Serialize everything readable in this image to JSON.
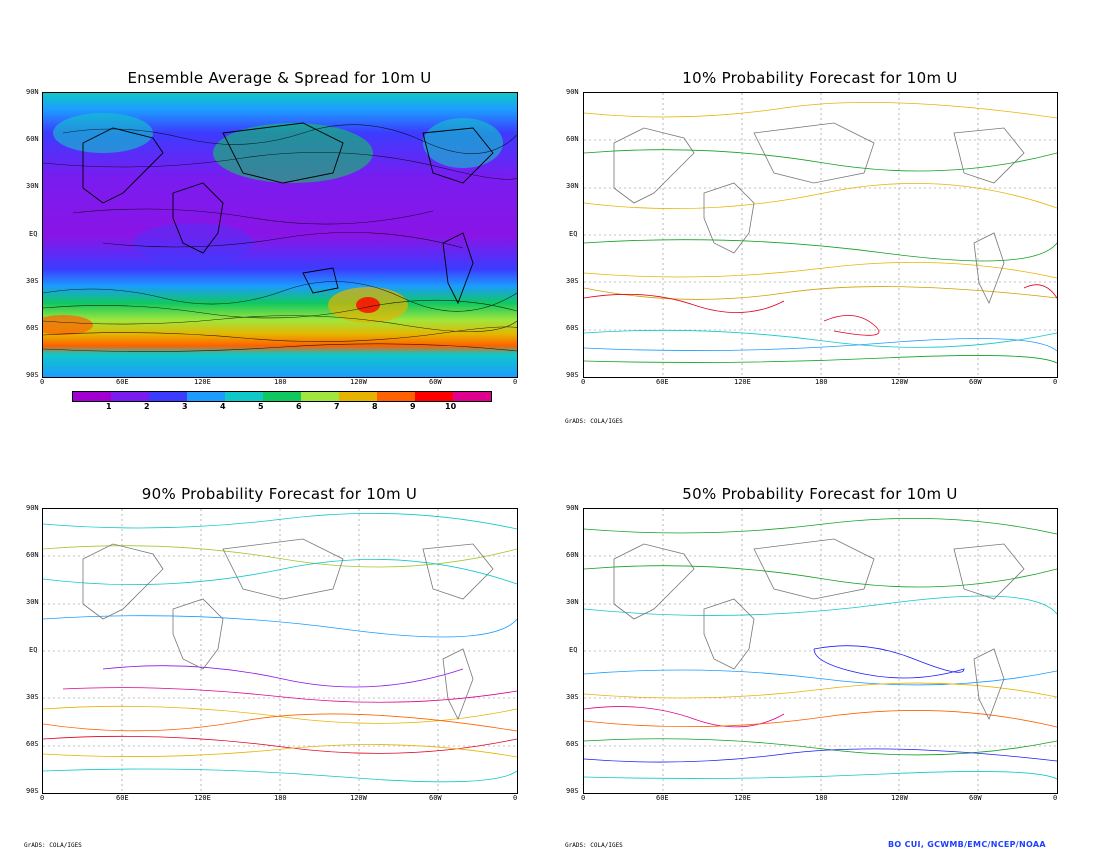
{
  "panels": [
    {
      "id": "avg",
      "title": "Ensemble Average & Spread for 10m U"
    },
    {
      "id": "p10",
      "title": "10% Probability Forecast for 10m U"
    },
    {
      "id": "p90",
      "title": "90% Probability Forecast for 10m U"
    },
    {
      "id": "p50",
      "title": "50% Probability Forecast for 10m U"
    }
  ],
  "lat_labels": [
    "90N",
    "60N",
    "30N",
    "EQ",
    "30S",
    "60S",
    "90S"
  ],
  "lon_labels": [
    "0",
    "60E",
    "120E",
    "180",
    "120W",
    "60W",
    "0"
  ],
  "colorbar": {
    "labels": [
      "1",
      "2",
      "3",
      "4",
      "5",
      "6",
      "7",
      "8",
      "9",
      "10"
    ],
    "colors": [
      "#a000d0",
      "#7a1cf0",
      "#3c3cff",
      "#1c9cff",
      "#10c8c8",
      "#10c860",
      "#a0e63c",
      "#e6b400",
      "#ff6000",
      "#ff0000",
      "#e00090"
    ]
  },
  "credits": {
    "grads_1": "GrADS: COLA/IGES",
    "grads_2": "GrADS: COLA/IGES",
    "grads_3": "GrADS: COLA/IGES",
    "author": "BO CUI, GCWMB/EMC/NCEP/NOAA"
  }
}
